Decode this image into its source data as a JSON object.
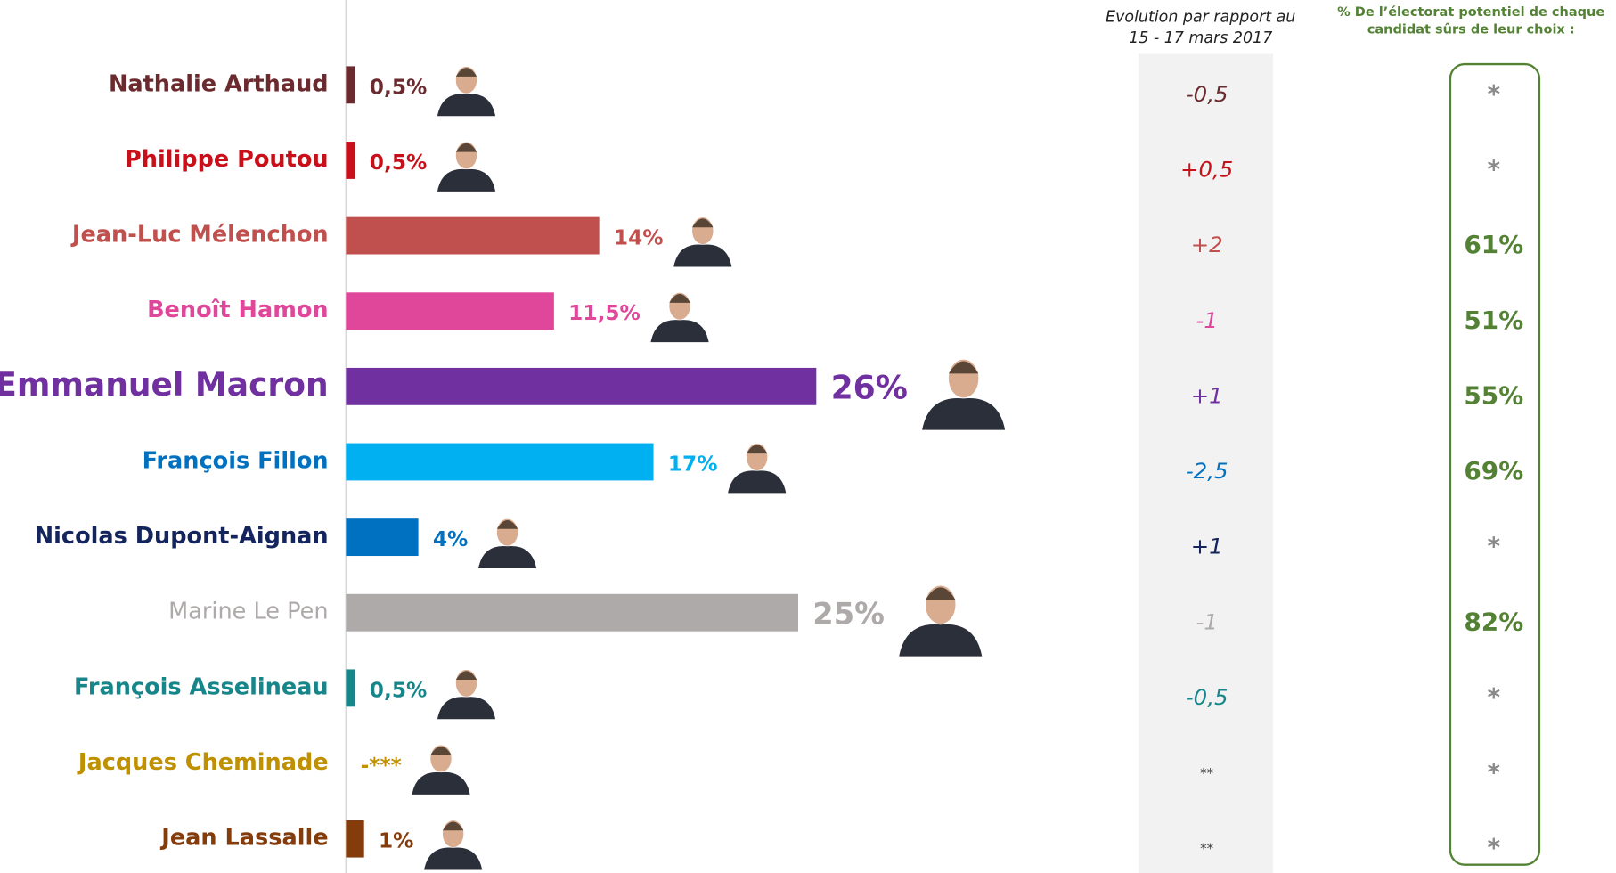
{
  "chart_data": {
    "type": "bar",
    "categories": [
      "Nathalie Arthaud",
      "Philippe Poutou",
      "Jean-Luc Mélenchon",
      "Benoît Hamon",
      "Emmanuel Macron",
      "François Fillon",
      "Nicolas Dupont-Aignan",
      "Marine Le Pen",
      "François Asselineau",
      "Jacques Cheminade",
      "Jean Lassalle"
    ],
    "values": [
      0.5,
      0.5,
      14,
      11.5,
      26,
      17,
      4,
      25,
      0.5,
      null,
      1
    ],
    "value_labels": [
      "0,5%",
      "0,5%",
      "14%",
      "11,5%",
      "26%",
      "17%",
      "4%",
      "25%",
      "0,5%",
      "-***",
      "1%"
    ],
    "colors": [
      "#6b2a2e",
      "#c8101a",
      "#c0504d",
      "#e0479b",
      "#7030a0",
      "#00b0f0",
      "#0070c0",
      "#aeaaaa",
      "#16868a",
      "#bf9000",
      "#843c0c"
    ],
    "name_colors": [
      "#6b2a2e",
      "#c8101a",
      "#c0504d",
      "#e0479b",
      "#7030a0",
      "#0070c0",
      "#14245c",
      "#aeaaaa",
      "#16868a",
      "#bf9000",
      "#843c0c"
    ],
    "evolution_title": [
      "Evolution par rapport au",
      "15 - 17 mars 2017"
    ],
    "evolution": [
      "-0,5",
      "+0,5",
      "+2",
      "-1",
      "+1",
      "-2,5",
      "+1",
      "-1",
      "-0,5",
      "**",
      "**"
    ],
    "certainty_title": [
      "% De l’électorat potentiel de chaque",
      "candidat sûrs de leur choix :"
    ],
    "certainty": [
      "*",
      "*",
      "61%",
      "51%",
      "55%",
      "69%",
      "*",
      "82%",
      "*",
      "*",
      "*"
    ]
  }
}
